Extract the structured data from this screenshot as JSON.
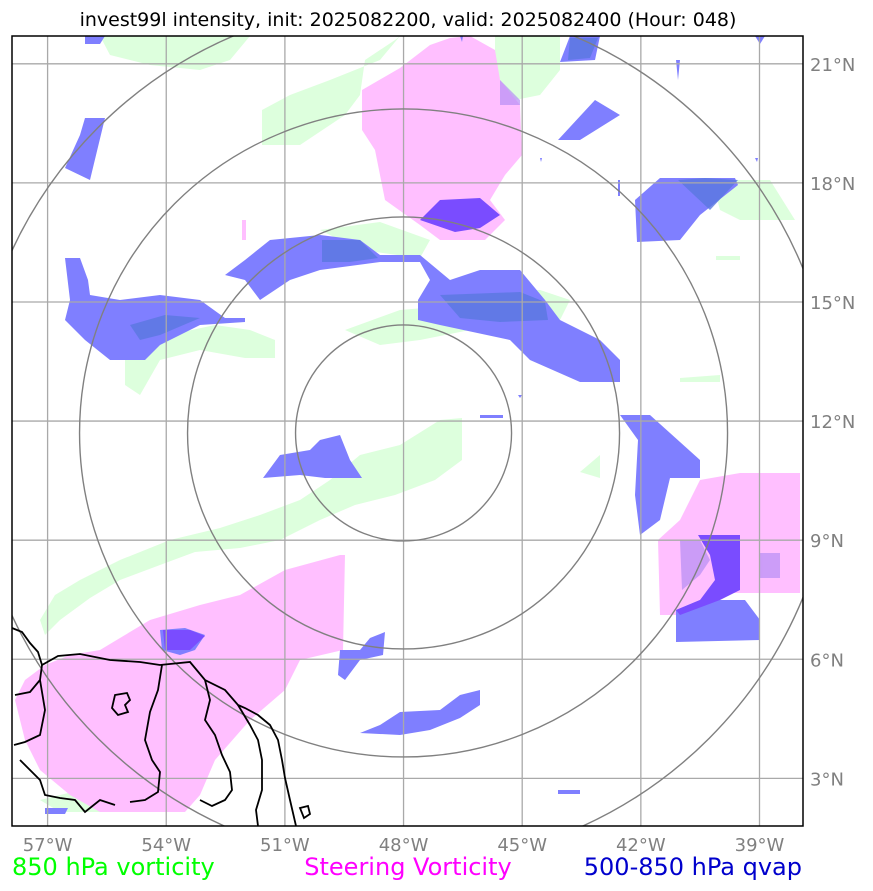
{
  "title": "invest99l intensity, init: 2025082200, valid: 2025082400 (Hour: 048)",
  "colors": {
    "vort850": "#ddffdd",
    "steering": "#ffbfff",
    "qvap": "#7f7fff",
    "qvap_dark": "#7a4cff",
    "grid": "#a9a9a9",
    "rings": "#808080",
    "coast": "#000000"
  },
  "map": {
    "lon_range": [
      -57.9,
      -37.9
    ],
    "lat_range": [
      1.8,
      21.7
    ],
    "center": {
      "lon": -48,
      "lat": 11.7
    },
    "lon_ticks": [
      -57,
      -54,
      -51,
      -48,
      -45,
      -42,
      -39
    ],
    "lat_ticks": [
      3,
      6,
      9,
      12,
      15,
      18,
      21
    ],
    "lon_tick_labels": [
      "57°W",
      "54°W",
      "51°W",
      "48°W",
      "45°W",
      "42°W",
      "39°W"
    ],
    "lat_tick_labels": [
      "3°N",
      "6°N",
      "9°N",
      "12°N",
      "15°N",
      "18°N",
      "21°N"
    ]
  },
  "legend": [
    {
      "label": "850 hPa vorticity",
      "color": "#00ff00"
    },
    {
      "label": "Steering Vorticity",
      "color": "#ff00ff"
    },
    {
      "label": "500-850 hPa qvap",
      "color": "#0000cc"
    }
  ]
}
